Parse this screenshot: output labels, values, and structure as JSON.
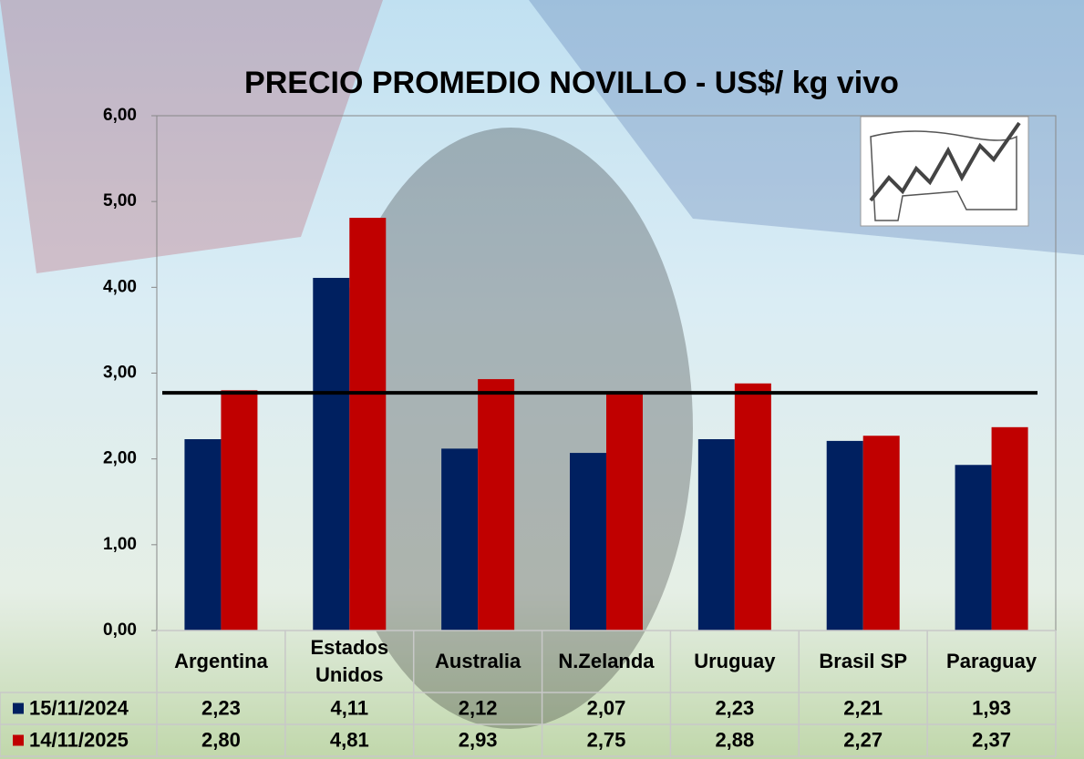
{
  "chart_data": {
    "type": "bar",
    "title": "PRECIO PROMEDIO NOVILLO  - US$/ kg vivo",
    "categories": [
      "Argentina",
      "Estados Unidos",
      "Australia",
      "N.Zelanda",
      "Uruguay",
      "Brasil SP",
      "Paraguay"
    ],
    "series": [
      {
        "name": "15/11/2024",
        "color": "#002060",
        "values": [
          2.23,
          4.11,
          2.12,
          2.07,
          2.23,
          2.21,
          1.93
        ],
        "value_labels": [
          "2,23",
          "4,11",
          "2,12",
          "2,07",
          "2,23",
          "2,21",
          "1,93"
        ]
      },
      {
        "name": "14/11/2025",
        "color": "#c00000",
        "values": [
          2.8,
          4.81,
          2.93,
          2.75,
          2.88,
          2.27,
          2.37
        ],
        "value_labels": [
          "2,80",
          "4,81",
          "2,93",
          "2,75",
          "2,88",
          "2,27",
          "2,37"
        ]
      }
    ],
    "reference_line": 2.77,
    "ylim": [
      0,
      6
    ],
    "yticks": [
      {
        "value": 0,
        "label": "0,00"
      },
      {
        "value": 1,
        "label": "1,00"
      },
      {
        "value": 2,
        "label": "2,00"
      },
      {
        "value": 3,
        "label": "3,00"
      },
      {
        "value": 4,
        "label": "4,00"
      },
      {
        "value": 5,
        "label": "5,00"
      },
      {
        "value": 6,
        "label": "6,00"
      }
    ],
    "data_table": true
  }
}
